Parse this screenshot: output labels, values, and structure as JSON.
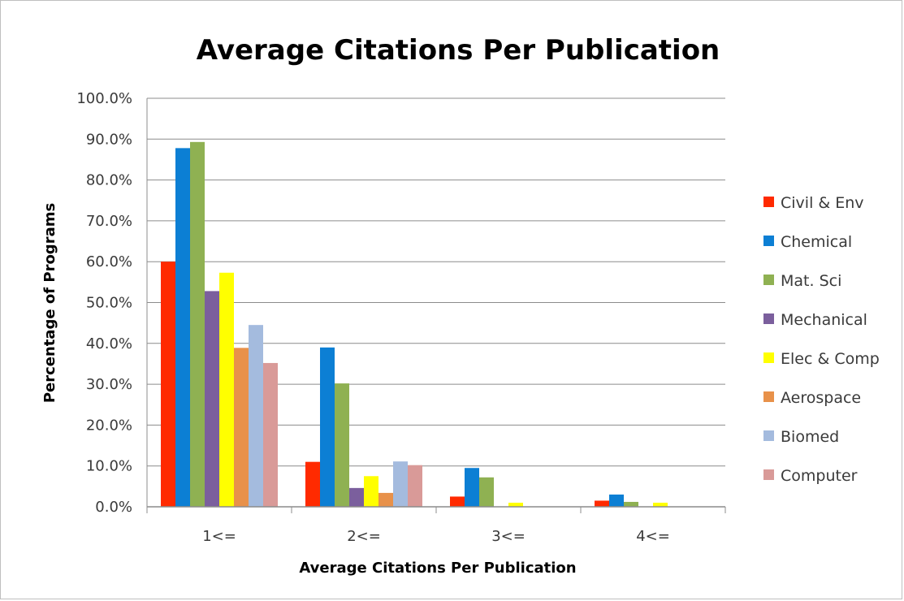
{
  "chart_data": {
    "type": "bar",
    "title": "Average Citations Per Publication",
    "xlabel": "Average Citations Per Publication",
    "ylabel": "Percentage of Programs",
    "categories": [
      "1<=",
      "2<=",
      "3<=",
      "4<="
    ],
    "ylim": [
      0,
      100
    ],
    "yticks": [
      "0.0%",
      "10.0%",
      "20.0%",
      "30.0%",
      "40.0%",
      "50.0%",
      "60.0%",
      "70.0%",
      "80.0%",
      "90.0%",
      "100.0%"
    ],
    "grid": true,
    "legend_position": "right",
    "series": [
      {
        "name": "Civil & Env",
        "color": "#ff2a00",
        "values": [
          60.0,
          11.0,
          2.5,
          1.5
        ]
      },
      {
        "name": "Chemical",
        "color": "#0c7fd4",
        "values": [
          87.8,
          39.0,
          9.5,
          3.0
        ]
      },
      {
        "name": "Mat. Sci",
        "color": "#8fb152",
        "values": [
          89.3,
          30.2,
          7.2,
          1.2
        ]
      },
      {
        "name": "Mechanical",
        "color": "#7b5f9d",
        "values": [
          52.8,
          4.6,
          0.0,
          0.0
        ]
      },
      {
        "name": "Elec & Comp",
        "color": "#ffff00",
        "values": [
          57.3,
          7.5,
          1.0,
          1.0
        ]
      },
      {
        "name": "Aerospace",
        "color": "#e8914a",
        "values": [
          38.9,
          3.4,
          0.0,
          0.0
        ]
      },
      {
        "name": "Biomed",
        "color": "#a4bbde",
        "values": [
          44.5,
          11.1,
          0.0,
          0.0
        ]
      },
      {
        "name": "Computer",
        "color": "#d99a98",
        "values": [
          35.2,
          10.2,
          0.0,
          0.0
        ]
      }
    ]
  }
}
